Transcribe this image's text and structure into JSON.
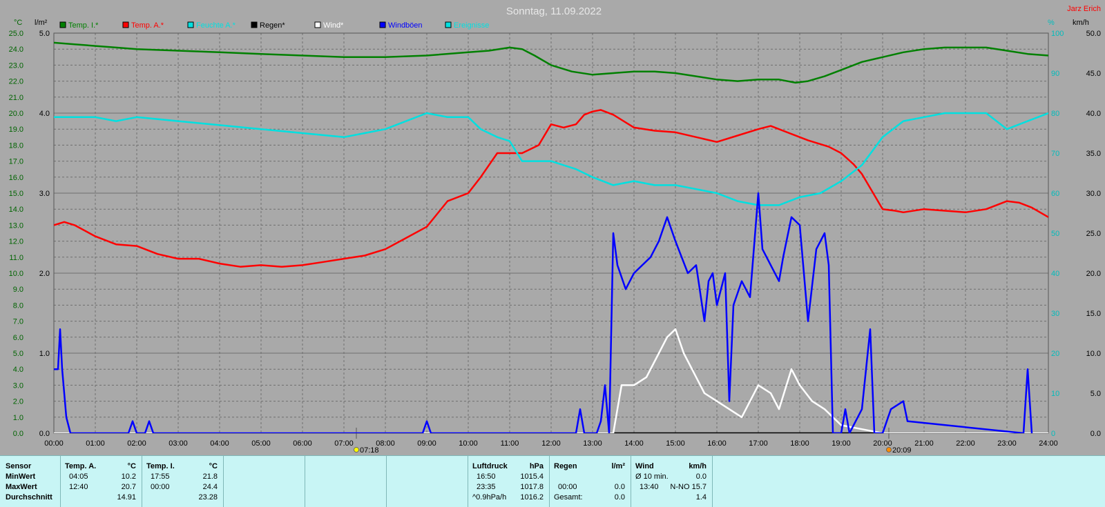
{
  "chart_data": {
    "type": "line",
    "title": "Sonntag, 11.09.2022",
    "station": "Jarz Erich",
    "axes": {
      "temp_unit": "°C",
      "rain_unit": "l/m²",
      "humidity_unit": "%",
      "wind_unit": "km/h",
      "temp_range": [
        0,
        25
      ],
      "rain_range": [
        0,
        5
      ],
      "humidity_range": [
        0,
        100
      ],
      "wind_range": [
        0,
        50
      ],
      "temp_ticks": [
        "0.0",
        "1.0",
        "2.0",
        "3.0",
        "4.0",
        "5.0",
        "6.0",
        "7.0",
        "8.0",
        "9.0",
        "10.0",
        "11.0",
        "12.0",
        "13.0",
        "14.0",
        "15.0",
        "16.0",
        "17.0",
        "18.0",
        "19.0",
        "20.0",
        "21.0",
        "22.0",
        "23.0",
        "24.0",
        "25.0"
      ],
      "rain_ticks": [
        "0.0",
        "1.0",
        "2.0",
        "3.0",
        "4.0",
        "5.0"
      ],
      "humidity_ticks": [
        "0",
        "10",
        "20",
        "30",
        "40",
        "50",
        "60",
        "70",
        "80",
        "90",
        "100"
      ],
      "wind_ticks": [
        "0.0",
        "5.0",
        "10.0",
        "15.0",
        "20.0",
        "25.0",
        "30.0",
        "35.0",
        "40.0",
        "45.0",
        "50.0"
      ],
      "x_ticks": [
        "00:00",
        "01:00",
        "02:00",
        "03:00",
        "04:00",
        "05:00",
        "06:00",
        "07:00",
        "08:00",
        "09:00",
        "10:00",
        "11:00",
        "12:00",
        "13:00",
        "14:00",
        "15:00",
        "16:00",
        "17:00",
        "18:00",
        "19:00",
        "20:00",
        "21:00",
        "22:00",
        "23:00",
        "24:00"
      ],
      "x_range_hours": [
        0,
        24
      ],
      "grid": true,
      "sunrise": "07:18",
      "sunset": "20:09"
    },
    "colors": {
      "background": "#a9a9a9",
      "grid": "#6e6e6e",
      "temp_axis": "#006400",
      "humidity_axis": "#00bcbc",
      "panel": "#c8f5f5",
      "station": "#ff0000"
    },
    "legend": [
      {
        "label": "Temp. I.*",
        "color": "#008000"
      },
      {
        "label": "Temp. A.*",
        "color": "#ff0000"
      },
      {
        "label": "Feuchte A.*",
        "color": "#00e0e0"
      },
      {
        "label": "Regen*",
        "color": "#000000"
      },
      {
        "label": "Wind*",
        "color": "#ffffff"
      },
      {
        "label": "Windböen",
        "color": "#0000ff"
      },
      {
        "label": "Ereignisse",
        "color": "#00e0e0"
      }
    ],
    "series": [
      {
        "name": "Temp. I.*",
        "axis": "temp",
        "color": "#008000",
        "x": [
          0,
          0.5,
          1,
          1.5,
          2,
          3,
          4,
          5,
          6,
          7,
          8,
          9,
          10,
          10.5,
          11,
          11.3,
          11.6,
          12,
          12.5,
          13,
          13.5,
          14,
          14.5,
          15,
          15.5,
          16,
          16.5,
          17,
          17.5,
          17.9,
          18.2,
          18.6,
          19,
          19.5,
          20,
          20.5,
          21,
          21.5,
          22,
          22.5,
          23,
          23.5,
          24
        ],
        "y": [
          24.4,
          24.3,
          24.2,
          24.1,
          24.0,
          23.9,
          23.8,
          23.7,
          23.6,
          23.5,
          23.5,
          23.6,
          23.8,
          23.9,
          24.1,
          24.0,
          23.6,
          23.0,
          22.6,
          22.4,
          22.5,
          22.6,
          22.6,
          22.5,
          22.3,
          22.1,
          22.0,
          22.1,
          22.1,
          21.9,
          22.0,
          22.3,
          22.7,
          23.2,
          23.5,
          23.8,
          24.0,
          24.1,
          24.1,
          24.1,
          23.9,
          23.7,
          23.6
        ]
      },
      {
        "name": "Temp. A.*",
        "axis": "temp",
        "color": "#ff0000",
        "x": [
          0,
          0.25,
          0.5,
          1,
          1.5,
          2,
          2.5,
          3,
          3.5,
          4,
          4.5,
          5,
          5.5,
          6,
          6.5,
          7,
          7.5,
          8,
          8.5,
          9,
          9.5,
          10,
          10.3,
          10.7,
          11,
          11.3,
          11.7,
          12,
          12.3,
          12.6,
          12.8,
          13,
          13.2,
          13.5,
          14,
          14.5,
          15,
          15.5,
          16,
          16.5,
          17,
          17.3,
          17.8,
          18.2,
          18.7,
          19,
          19.3,
          19.5,
          20,
          20.3,
          20.5,
          21,
          21.5,
          22,
          22.5,
          23,
          23.3,
          23.6,
          24
        ],
        "y": [
          13.0,
          13.2,
          13.0,
          12.3,
          11.8,
          11.7,
          11.2,
          10.9,
          10.9,
          10.6,
          10.4,
          10.5,
          10.4,
          10.5,
          10.7,
          10.9,
          11.1,
          11.5,
          12.2,
          12.9,
          14.5,
          15.0,
          16.0,
          17.5,
          17.5,
          17.5,
          18.0,
          19.3,
          19.1,
          19.3,
          19.9,
          20.1,
          20.2,
          19.9,
          19.1,
          18.9,
          18.8,
          18.5,
          18.2,
          18.6,
          19.0,
          19.2,
          18.7,
          18.3,
          17.9,
          17.5,
          16.8,
          16.2,
          14.0,
          13.9,
          13.8,
          14.0,
          13.9,
          13.8,
          14.0,
          14.5,
          14.4,
          14.1,
          13.5
        ]
      },
      {
        "name": "Feuchte A.*",
        "axis": "humidity",
        "color": "#00e0e0",
        "x": [
          0,
          0.5,
          1,
          1.5,
          2,
          3,
          4,
          5,
          6,
          7,
          7.5,
          8,
          8.5,
          9,
          9.5,
          10,
          10.3,
          10.7,
          11,
          11.3,
          11.6,
          12,
          12.3,
          12.6,
          13,
          13.5,
          14,
          14.5,
          15,
          15.5,
          16,
          16.5,
          17,
          17.5,
          18,
          18.5,
          19,
          19.5,
          20,
          20.5,
          21,
          21.5,
          22,
          22.5,
          23,
          23.5,
          24
        ],
        "y": [
          79,
          79,
          79,
          78,
          79,
          78,
          77,
          76,
          75,
          74,
          75,
          76,
          78,
          80,
          79,
          79,
          76,
          74,
          73,
          68,
          68,
          68,
          67,
          66,
          64,
          62,
          63,
          62,
          62,
          61,
          60,
          58,
          57,
          57,
          59,
          60,
          63,
          67,
          74,
          78,
          79,
          80,
          80,
          80,
          76,
          78,
          80
        ]
      },
      {
        "name": "Regen*",
        "axis": "rain",
        "color": "#000000",
        "x": [
          0,
          24
        ],
        "y": [
          0,
          0
        ]
      },
      {
        "name": "Wind*",
        "axis": "wind",
        "color": "#ffffff",
        "x": [
          0,
          13.5,
          13.7,
          14,
          14.3,
          14.6,
          14.8,
          15,
          15.2,
          15.5,
          15.7,
          16,
          16.3,
          16.6,
          17,
          17.3,
          17.5,
          17.8,
          18,
          18.3,
          18.6,
          19,
          19.5,
          20,
          20.5,
          21,
          24
        ],
        "y": [
          0,
          0,
          6,
          6,
          7,
          10,
          12,
          13,
          10,
          7,
          5,
          4,
          3,
          2,
          6,
          5,
          3,
          8,
          6,
          4,
          3,
          1,
          0.5,
          0,
          0,
          0,
          0
        ]
      },
      {
        "name": "Windböen",
        "axis": "wind",
        "color": "#0000ff",
        "x": [
          0,
          0.1,
          0.15,
          0.2,
          0.3,
          0.4,
          1.8,
          1.9,
          2,
          2.2,
          2.3,
          2.4,
          8.9,
          9,
          9.1,
          12.6,
          12.7,
          12.8,
          13.1,
          13.2,
          13.3,
          13.4,
          13.5,
          13.6,
          13.8,
          13.9,
          14,
          14.2,
          14.4,
          14.6,
          14.8,
          15,
          15.3,
          15.5,
          15.7,
          15.8,
          15.9,
          16,
          16.2,
          16.3,
          16.4,
          16.6,
          16.8,
          17,
          17.1,
          17.3,
          17.5,
          17.6,
          17.8,
          18,
          18.2,
          18.4,
          18.6,
          18.7,
          18.8,
          19,
          19.1,
          19.2,
          19.4,
          19.5,
          19.7,
          19.8,
          20,
          20.2,
          20.5,
          20.6,
          23.4,
          23.5,
          23.6
        ],
        "y": [
          8,
          8,
          13,
          8,
          2,
          0,
          0,
          1.5,
          0,
          0,
          1.5,
          0,
          0,
          1.5,
          0,
          0,
          3,
          0,
          0,
          1.5,
          6,
          0,
          25,
          21,
          18,
          19,
          20,
          21,
          22,
          24,
          27,
          24,
          20,
          21,
          14,
          19,
          20,
          16,
          20,
          4,
          16,
          19,
          17,
          30,
          23,
          21,
          19,
          22,
          27,
          26,
          14,
          23,
          25,
          21,
          0,
          0,
          3,
          0,
          2,
          3,
          13,
          0,
          0,
          3,
          4,
          1.5,
          0,
          8,
          0
        ]
      }
    ]
  },
  "stats": {
    "col1": {
      "header": "Sensor",
      "rows": [
        "MinWert",
        "MaxWert",
        "Durchschnitt"
      ]
    },
    "col2": {
      "header": "Temp. A.",
      "unit": "°C",
      "rows": [
        {
          "time": "04:05",
          "value": "10.2"
        },
        {
          "time": "12:40",
          "value": "20.7"
        },
        {
          "time": "",
          "value": "14.91"
        }
      ]
    },
    "col3": {
      "header": "Temp. I.",
      "unit": "°C",
      "rows": [
        {
          "time": "17:55",
          "value": "21.8"
        },
        {
          "time": "00:00",
          "value": "24.4"
        },
        {
          "time": "",
          "value": "23.28"
        }
      ]
    },
    "col4": {
      "header": "Luftdruck",
      "unit": "hPa",
      "rows": [
        {
          "time": "16:50",
          "value": "1015.4"
        },
        {
          "time": "23:35",
          "value": "1017.8"
        },
        {
          "time": "^0.9hPa/h",
          "value": "1016.2"
        }
      ]
    },
    "col5": {
      "header": "Regen",
      "unit": "l/m²",
      "rows": [
        {
          "time": "",
          "value": ""
        },
        {
          "time": "00:00",
          "value": "0.0"
        },
        {
          "time": "Gesamt:",
          "value": "0.0"
        }
      ]
    },
    "col6": {
      "header": "Wind",
      "unit": "km/h",
      "rows": [
        {
          "time": "Ø 10 min.",
          "value": "0.0"
        },
        {
          "time": "13:40",
          "value": "N-NO 15.7"
        },
        {
          "time": "",
          "value": "1.4"
        }
      ]
    }
  }
}
